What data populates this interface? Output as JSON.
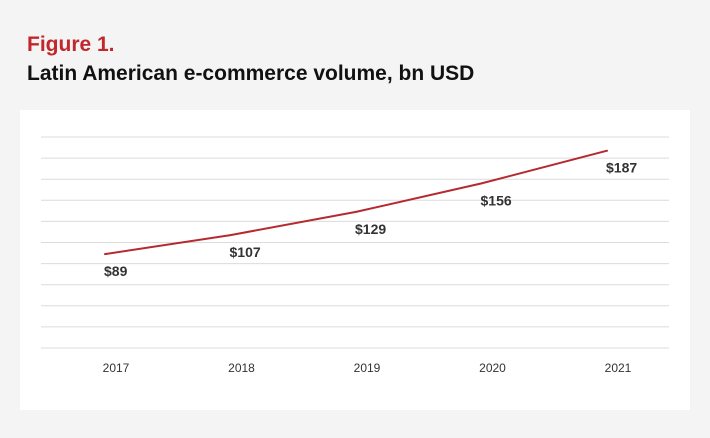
{
  "figure": {
    "label": "Figure 1.",
    "title": "Latin American e-commerce volume, bn USD"
  },
  "chart_data": {
    "type": "line",
    "categories": [
      "2017",
      "2018",
      "2019",
      "2020",
      "2021"
    ],
    "series": [
      {
        "values": [
          89,
          107,
          129,
          156,
          187
        ],
        "data_labels": [
          "$89",
          "$107",
          "$129",
          "$156",
          "$187"
        ],
        "color": "#b52a2e"
      }
    ],
    "ylim": [
      0,
      200
    ],
    "grid": true,
    "legend": "none"
  }
}
